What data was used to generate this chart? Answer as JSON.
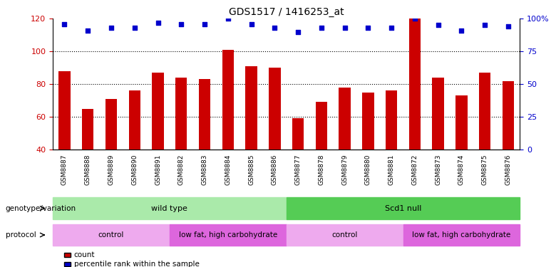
{
  "title": "GDS1517 / 1416253_at",
  "samples": [
    "GSM8887",
    "GSM8888",
    "GSM8889",
    "GSM8890",
    "GSM8891",
    "GSM8882",
    "GSM8883",
    "GSM8884",
    "GSM8885",
    "GSM8886",
    "GSM8877",
    "GSM8878",
    "GSM8879",
    "GSM8880",
    "GSM8881",
    "GSM8872",
    "GSM8873",
    "GSM8874",
    "GSM8875",
    "GSM8876"
  ],
  "count_values": [
    88,
    65,
    71,
    76,
    87,
    84,
    83,
    101,
    91,
    90,
    59,
    69,
    78,
    75,
    76,
    120,
    84,
    73,
    87,
    82
  ],
  "percentile_values": [
    96,
    91,
    93,
    93,
    97,
    96,
    96,
    100,
    96,
    93,
    90,
    93,
    93,
    93,
    93,
    100,
    95,
    91,
    95,
    94
  ],
  "ylim_left": [
    40,
    120
  ],
  "ylim_right": [
    0,
    100
  ],
  "yticks_left": [
    40,
    60,
    80,
    100,
    120
  ],
  "yticks_right": [
    0,
    25,
    50,
    75,
    100
  ],
  "ytick_labels_right": [
    "0",
    "25",
    "50",
    "75",
    "100%"
  ],
  "bar_color": "#cc0000",
  "dot_color": "#0000cc",
  "genotype_groups": [
    {
      "label": "wild type",
      "start": 0,
      "end": 10,
      "color": "#aaeaaa"
    },
    {
      "label": "Scd1 null",
      "start": 10,
      "end": 20,
      "color": "#55cc55"
    }
  ],
  "protocol_groups": [
    {
      "label": "control",
      "start": 0,
      "end": 5,
      "color": "#eeaaee"
    },
    {
      "label": "low fat, high carbohydrate",
      "start": 5,
      "end": 10,
      "color": "#dd66dd"
    },
    {
      "label": "control",
      "start": 10,
      "end": 15,
      "color": "#eeaaee"
    },
    {
      "label": "low fat, high carbohydrate",
      "start": 15,
      "end": 20,
      "color": "#dd66dd"
    }
  ],
  "legend_count_label": "count",
  "legend_pct_label": "percentile rank within the sample",
  "genotype_label": "genotype/variation",
  "protocol_label": "protocol",
  "bar_width": 0.5,
  "fig_width": 7.8,
  "fig_height": 3.75
}
